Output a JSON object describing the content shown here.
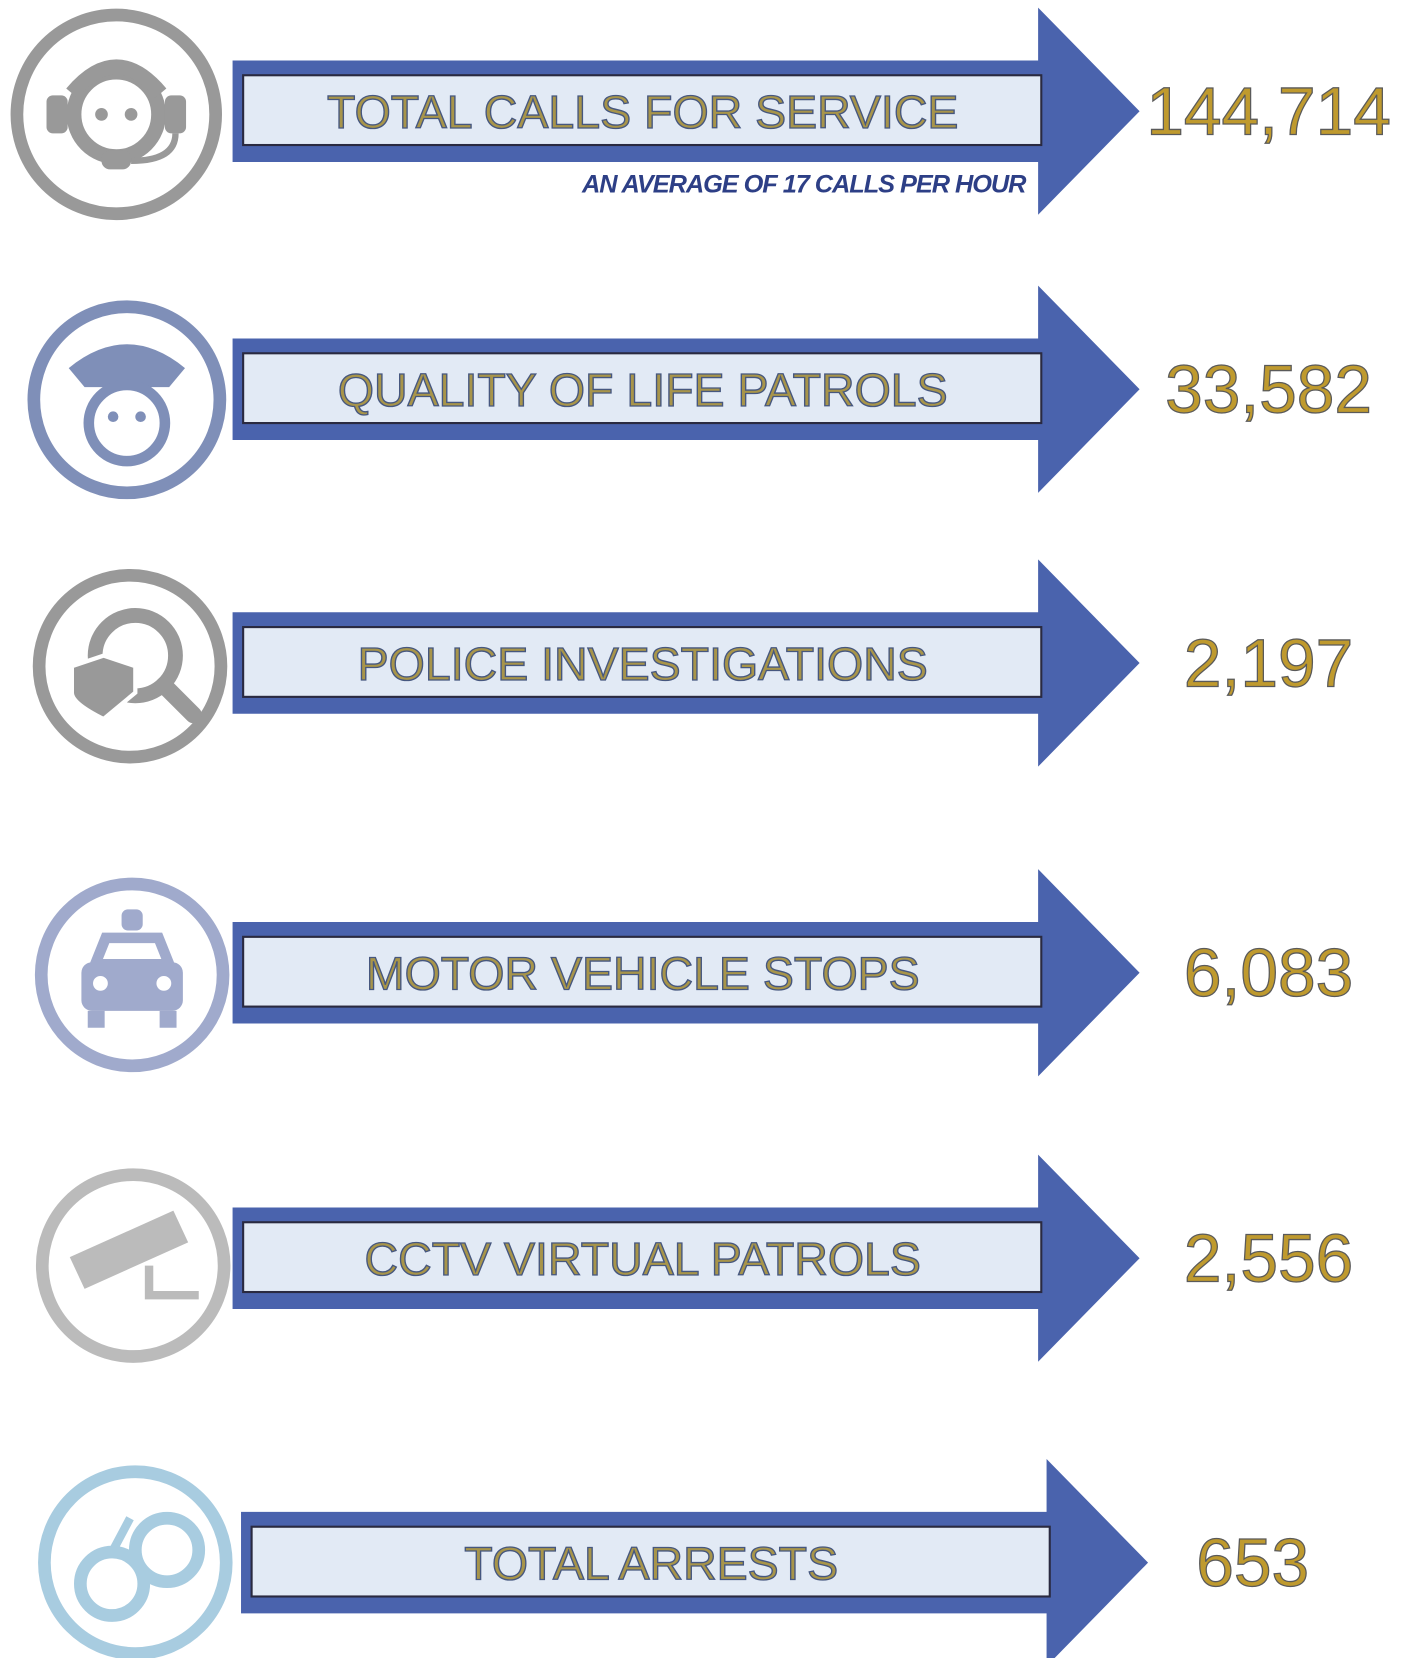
{
  "rows": [
    {
      "label": "TOTAL CALLS FOR SERVICE",
      "value": "144,714",
      "note": "AN AVERAGE OF 17 CALLS PER HOUR"
    },
    {
      "label": "QUALITY OF LIFE PATROLS",
      "value": "33,582"
    },
    {
      "label": "POLICE INVESTIGATIONS",
      "value": "2,197"
    },
    {
      "label": "MOTOR VEHICLE STOPS",
      "value": "6,083"
    },
    {
      "label": "CCTV VIRTUAL PATROLS",
      "value": "2,556"
    },
    {
      "label": "TOTAL ARRESTS",
      "value": "653"
    }
  ]
}
